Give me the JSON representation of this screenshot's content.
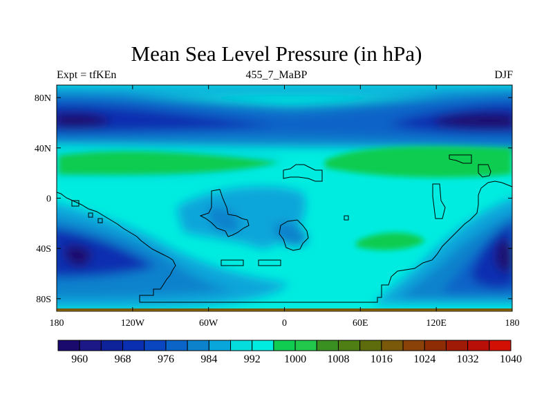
{
  "chart_data": {
    "type": "heatmap",
    "title": "Mean Sea Level Pressure (in hPa)",
    "subtitle_left": "Expt = tfKEn",
    "subtitle_center": "455_7_MaBP",
    "subtitle_right": "DJF",
    "x_ticks": [
      {
        "value": -180,
        "label": "180"
      },
      {
        "value": -120,
        "label": "120W"
      },
      {
        "value": -60,
        "label": "60W"
      },
      {
        "value": 0,
        "label": "0"
      },
      {
        "value": 60,
        "label": "60E"
      },
      {
        "value": 120,
        "label": "120E"
      },
      {
        "value": 180,
        "label": "180"
      }
    ],
    "y_ticks": [
      {
        "value": 80,
        "label": "80N"
      },
      {
        "value": 40,
        "label": "40N"
      },
      {
        "value": 0,
        "label": "0"
      },
      {
        "value": -40,
        "label": "40S"
      },
      {
        "value": -80,
        "label": "80S"
      }
    ],
    "xlim": [
      -180,
      180
    ],
    "ylim": [
      -90,
      90
    ],
    "colorbar": {
      "levels": [
        960,
        964,
        968,
        972,
        976,
        980,
        984,
        988,
        992,
        996,
        1000,
        1004,
        1008,
        1012,
        1016,
        1020,
        1024,
        1028,
        1032,
        1036,
        1040
      ],
      "labels": [
        "960",
        "968",
        "976",
        "984",
        "992",
        "1000",
        "1008",
        "1016",
        "1024",
        "1032",
        "1040"
      ],
      "colors": [
        "#1a0a6e",
        "#1c1888",
        "#0e229a",
        "#0a2fb0",
        "#0a46c0",
        "#0b64c8",
        "#0d82cc",
        "#08a6da",
        "#05dcdc",
        "#00ece0",
        "#10cc50",
        "#22c84c",
        "#3a9020",
        "#4e7e14",
        "#5e6c0e",
        "#7a5a0a",
        "#8a4208",
        "#8e2c06",
        "#a01a08",
        "#b81008",
        "#d21004"
      ]
    },
    "regions_approx": [
      {
        "area": "northern mid-latitude low belt (Pacific & Asia)",
        "value": 968
      },
      {
        "area": "subtropical highs 30N",
        "value": 1008
      },
      {
        "area": "equatorial band",
        "value": 1000
      },
      {
        "area": "southern subtropical high (Indian Ocean)",
        "value": 1008
      },
      {
        "area": "southern ocean low belt",
        "value": 968
      },
      {
        "area": "antarctic margin",
        "value": 992
      }
    ]
  }
}
